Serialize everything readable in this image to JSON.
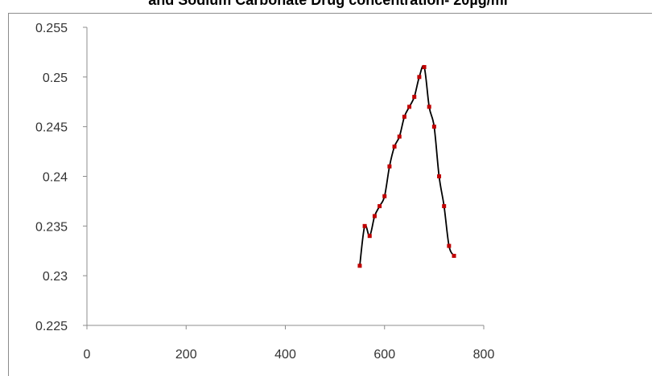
{
  "chart_data": {
    "type": "scatter",
    "title": "and Sodium Carbonate Drug concentration- 20µg/ml",
    "xlabel": "",
    "ylabel": "",
    "xlim": [
      0,
      800
    ],
    "ylim": [
      0.225,
      0.255
    ],
    "x_ticks": [
      "0",
      "200",
      "400",
      "600",
      "800"
    ],
    "y_ticks": [
      "0.225",
      "0.23",
      "0.235",
      "0.24",
      "0.245",
      "0.25",
      "0.255"
    ],
    "grid": false,
    "legend": "none",
    "series": [
      {
        "marker_color": "#c00000",
        "line_color": "#000000",
        "line": "smooth",
        "points": [
          [
            550,
            0.231
          ],
          [
            560,
            0.235
          ],
          [
            570,
            0.234
          ],
          [
            580,
            0.236
          ],
          [
            590,
            0.237
          ],
          [
            600,
            0.238
          ],
          [
            610,
            0.241
          ],
          [
            620,
            0.243
          ],
          [
            630,
            0.244
          ],
          [
            640,
            0.246
          ],
          [
            650,
            0.247
          ],
          [
            660,
            0.248
          ],
          [
            670,
            0.25
          ],
          [
            680,
            0.251
          ],
          [
            690,
            0.247
          ],
          [
            700,
            0.245
          ],
          [
            710,
            0.24
          ],
          [
            720,
            0.237
          ],
          [
            730,
            0.233
          ],
          [
            740,
            0.232
          ]
        ]
      }
    ]
  }
}
